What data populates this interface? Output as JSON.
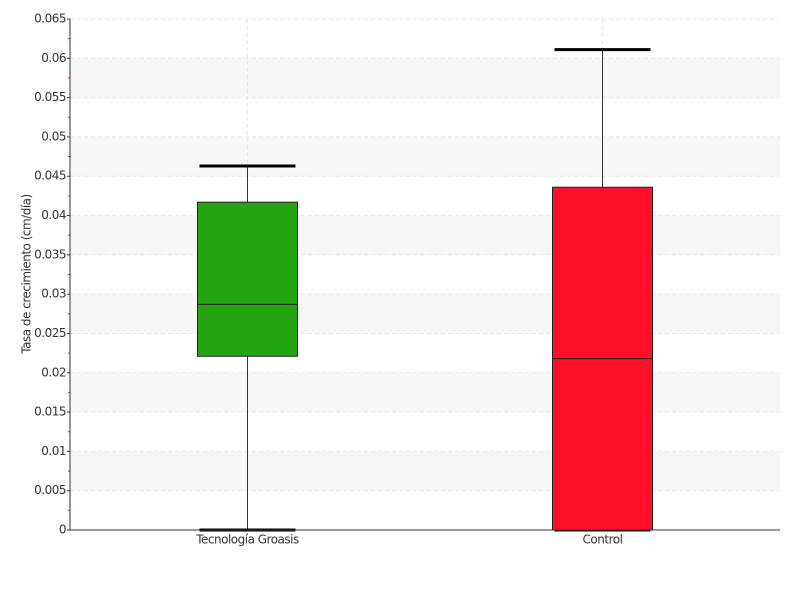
{
  "chart_data": {
    "type": "box",
    "y_label": "Tasa de crecimiento (cm/día)",
    "categories": [
      "Tecnología Groasis",
      "Control"
    ],
    "boxes": [
      {
        "min": 0,
        "q1": 0.0221,
        "median": 0.0287,
        "q3": 0.0417,
        "max": 0.0463,
        "color": "#22a511"
      },
      {
        "min": 0,
        "q1": 0,
        "median": 0.0218,
        "q3": 0.0436,
        "max": 0.0611,
        "color": "#ff0f2a"
      }
    ],
    "ylim": [
      0,
      0.065
    ],
    "yticks": [
      0,
      0.005,
      0.01,
      0.015,
      0.02,
      0.025,
      0.03,
      0.035,
      0.04,
      0.045,
      0.05,
      0.055,
      0.06,
      0.065
    ],
    "grid": true
  }
}
